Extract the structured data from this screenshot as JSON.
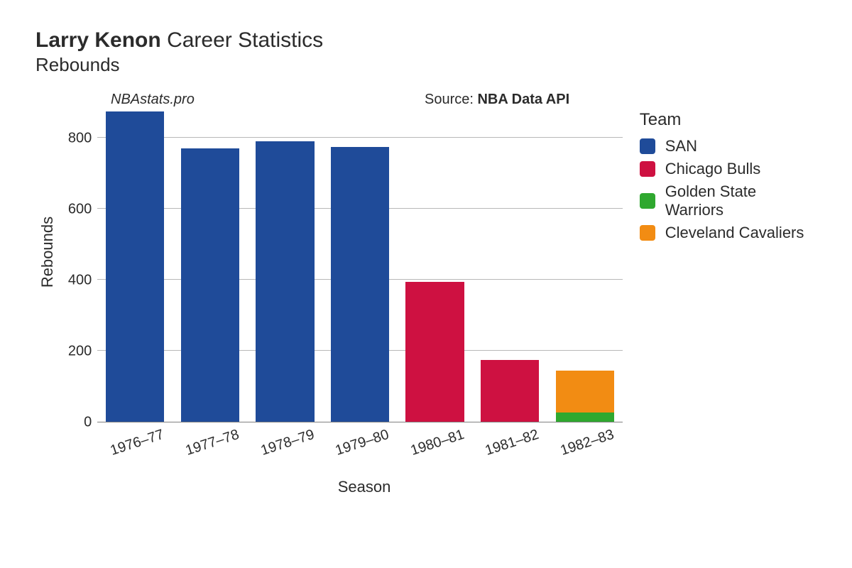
{
  "title": {
    "player": "Larry Kenon",
    "suffix": "Career Statistics",
    "metric": "Rebounds"
  },
  "annotations": {
    "site": "NBAstats.pro",
    "source_prefix": "Source: ",
    "source_name": "NBA Data API"
  },
  "chart": {
    "type": "bar-stacked",
    "x_label": "Season",
    "y_label": "Rebounds",
    "y_min": 0,
    "y_max": 880,
    "y_ticks": [
      0,
      200,
      400,
      600,
      800
    ],
    "grid_color": "#b8b8b8",
    "axis_color": "#808080",
    "background_color": "#ffffff",
    "label_fontsize": 22,
    "tick_fontsize": 20,
    "bar_width_ratio": 0.78,
    "seasons": [
      "1976–77",
      "1977–78",
      "1978–79",
      "1979–80",
      "1980–81",
      "1981–82",
      "1982–83"
    ],
    "teams": [
      {
        "name": "SAN",
        "color": "#1f4b99"
      },
      {
        "name": "Chicago Bulls",
        "color": "#ce1141"
      },
      {
        "name": "Golden State Warriors",
        "color": "#2fa82f"
      },
      {
        "name": "Cleveland Cavaliers",
        "color": "#f28c13"
      }
    ],
    "stacks": [
      [
        {
          "team": "SAN",
          "value": 875
        }
      ],
      [
        {
          "team": "SAN",
          "value": 770
        }
      ],
      [
        {
          "team": "SAN",
          "value": 790
        }
      ],
      [
        {
          "team": "SAN",
          "value": 775
        }
      ],
      [
        {
          "team": "Chicago Bulls",
          "value": 395
        }
      ],
      [
        {
          "team": "Chicago Bulls",
          "value": 175
        }
      ],
      [
        {
          "team": "Golden State Warriors",
          "value": 26
        },
        {
          "team": "Cleveland Cavaliers",
          "value": 118
        }
      ]
    ]
  },
  "legend": {
    "title": "Team"
  }
}
